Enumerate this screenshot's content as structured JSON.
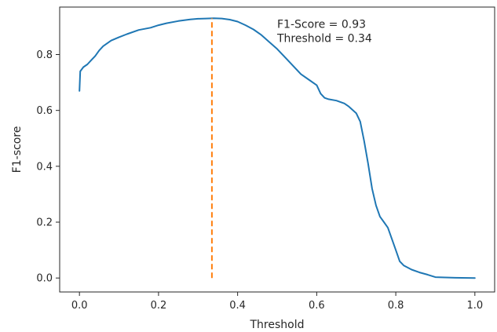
{
  "chart_data": {
    "type": "line",
    "title": "",
    "xlabel": "Threshold",
    "ylabel": "F1-score",
    "xlim": [
      -0.05,
      1.05
    ],
    "ylim": [
      -0.05,
      0.97
    ],
    "xticks": [
      0.0,
      0.2,
      0.4,
      0.6,
      0.8,
      1.0
    ],
    "xtick_labels": [
      "0.0",
      "0.2",
      "0.4",
      "0.6",
      "0.8",
      "1.0"
    ],
    "yticks": [
      0.0,
      0.2,
      0.4,
      0.6,
      0.8
    ],
    "ytick_labels": [
      "0.0",
      "0.2",
      "0.4",
      "0.6",
      "0.8"
    ],
    "grid": false,
    "series": [
      {
        "color": "#1f77b4",
        "style": "solid",
        "x": [
          0.0,
          0.002,
          0.01,
          0.02,
          0.03,
          0.04,
          0.05,
          0.06,
          0.08,
          0.1,
          0.12,
          0.15,
          0.18,
          0.2,
          0.22,
          0.25,
          0.28,
          0.3,
          0.32,
          0.34,
          0.36,
          0.38,
          0.4,
          0.42,
          0.44,
          0.46,
          0.48,
          0.5,
          0.52,
          0.54,
          0.56,
          0.58,
          0.6,
          0.61,
          0.62,
          0.63,
          0.65,
          0.67,
          0.68,
          0.7,
          0.71,
          0.72,
          0.73,
          0.74,
          0.75,
          0.76,
          0.77,
          0.78,
          0.79,
          0.8,
          0.81,
          0.82,
          0.84,
          0.86,
          0.88,
          0.9,
          0.95,
          1.0
        ],
        "y": [
          0.67,
          0.74,
          0.755,
          0.765,
          0.78,
          0.795,
          0.815,
          0.83,
          0.85,
          0.862,
          0.873,
          0.888,
          0.896,
          0.905,
          0.912,
          0.92,
          0.926,
          0.928,
          0.929,
          0.93,
          0.929,
          0.925,
          0.918,
          0.905,
          0.89,
          0.87,
          0.845,
          0.82,
          0.79,
          0.76,
          0.73,
          0.71,
          0.69,
          0.66,
          0.645,
          0.64,
          0.635,
          0.625,
          0.615,
          0.59,
          0.56,
          0.49,
          0.41,
          0.32,
          0.26,
          0.22,
          0.2,
          0.18,
          0.14,
          0.1,
          0.06,
          0.045,
          0.03,
          0.02,
          0.012,
          0.003,
          0.001,
          0.0
        ]
      },
      {
        "color": "#ff7f0e",
        "style": "dashed",
        "x": [
          0.335,
          0.335
        ],
        "y": [
          0.0,
          0.93
        ]
      }
    ],
    "annotations": [
      {
        "text": "F1-Score = 0.93",
        "x": 0.5,
        "y": 0.895
      },
      {
        "text": "Threshold = 0.34",
        "x": 0.5,
        "y": 0.845
      }
    ]
  }
}
